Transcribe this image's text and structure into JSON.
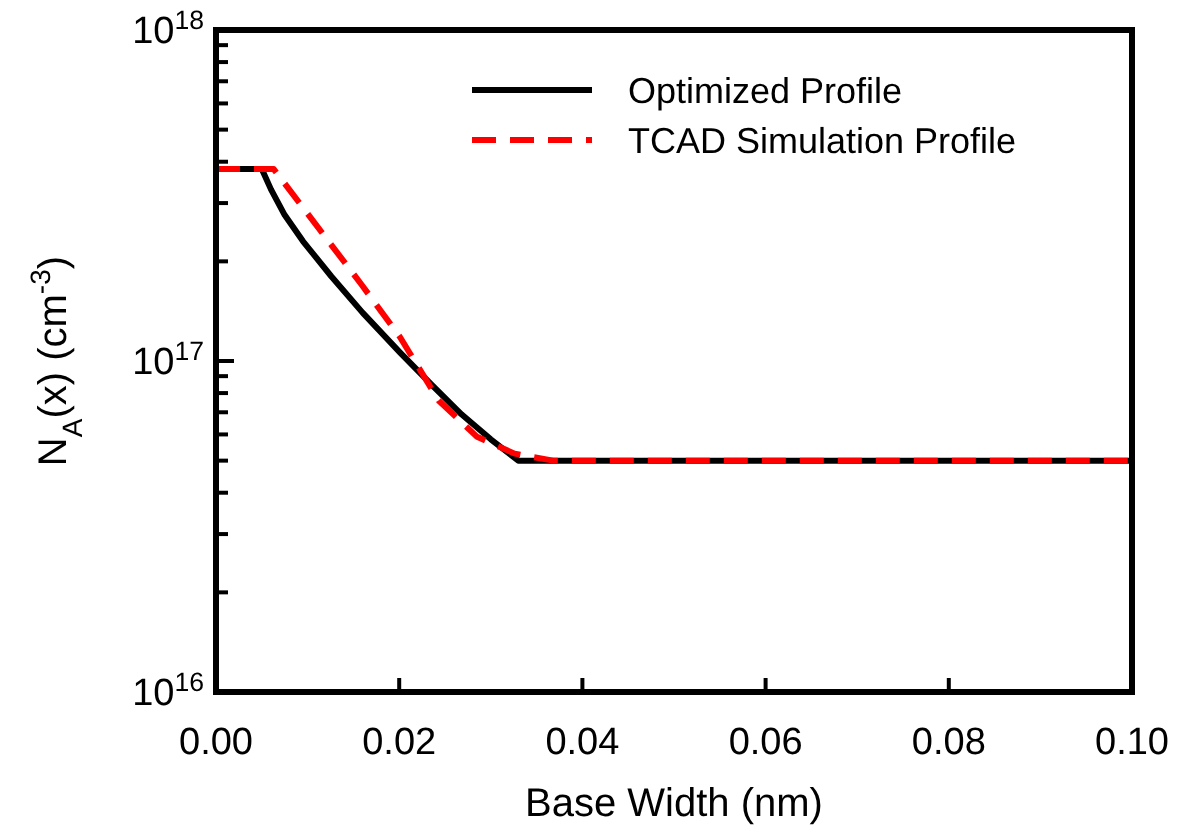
{
  "chart_data": {
    "type": "line",
    "xlabel": "Base Width (nm)",
    "ylabel": "N$_{A}$(x) (cm$^{-3}$)",
    "log": "y",
    "legend": "top right",
    "grid": false,
    "xlim": [
      0,
      0.1
    ],
    "ylim": [
      1e+16,
      1e+18
    ],
    "xticks": [
      {
        "value": 0,
        "label": "0.00"
      },
      {
        "value": 0.02,
        "label": "0.02"
      },
      {
        "value": 0.04,
        "label": "0.04"
      },
      {
        "value": 0.06,
        "label": "0.06"
      },
      {
        "value": 0.08,
        "label": "0.08"
      },
      {
        "value": 0.1,
        "label": "0.10"
      }
    ],
    "yticks": [
      {
        "value": 1e+16,
        "label": "10$^{16}$"
      },
      {
        "value": 2e+16,
        "label": null
      },
      {
        "value": 3e+16,
        "label": null
      },
      {
        "value": 4e+16,
        "label": null
      },
      {
        "value": 5e+16,
        "label": null
      },
      {
        "value": 6e+16,
        "label": null
      },
      {
        "value": 7e+16,
        "label": null
      },
      {
        "value": 8e+16,
        "label": null
      },
      {
        "value": 9e+16,
        "label": null
      },
      {
        "value": 1e+17,
        "label": "10$^{17}$"
      },
      {
        "value": 2e+17,
        "label": null
      },
      {
        "value": 3e+17,
        "label": null
      },
      {
        "value": 4e+17,
        "label": null
      },
      {
        "value": 5e+17,
        "label": null
      },
      {
        "value": 6e+17,
        "label": null
      },
      {
        "value": 7e+17,
        "label": null
      },
      {
        "value": 8e+17,
        "label": null
      },
      {
        "value": 9e+17,
        "label": null
      },
      {
        "value": 1e+18,
        "label": "10$^{18}$"
      }
    ],
    "series": [
      {
        "name": "Optimized Profile",
        "color": "#000000",
        "line_style": "solid",
        "x": [
          0,
          0.005,
          0.006,
          0.0075,
          0.0095,
          0.0126,
          0.016,
          0.0201,
          0.0235,
          0.0268,
          0.03,
          0.033,
          0.1
        ],
        "values": [
          3.8e+17,
          3.8e+17,
          3.3e+17,
          2.76e+17,
          2.3e+17,
          1.8e+17,
          1.4e+17,
          1.06e+17,
          8.5e+16,
          6.9e+16,
          5.8e+16,
          5e+16,
          5e+16
        ]
      },
      {
        "name": "TCAD Simulation Profile",
        "color": "#ff0000",
        "line_style": "dashed",
        "x": [
          0,
          0.0063,
          0.0126,
          0.0159,
          0.0201,
          0.0243,
          0.0285,
          0.0326,
          0.0368,
          0.1
        ],
        "values": [
          3.8e+17,
          3.8e+17,
          2.24e+17,
          1.7e+17,
          1.18e+17,
          7.6e+16,
          5.9e+16,
          5.25e+16,
          5e+16,
          5e+16
        ]
      }
    ]
  }
}
